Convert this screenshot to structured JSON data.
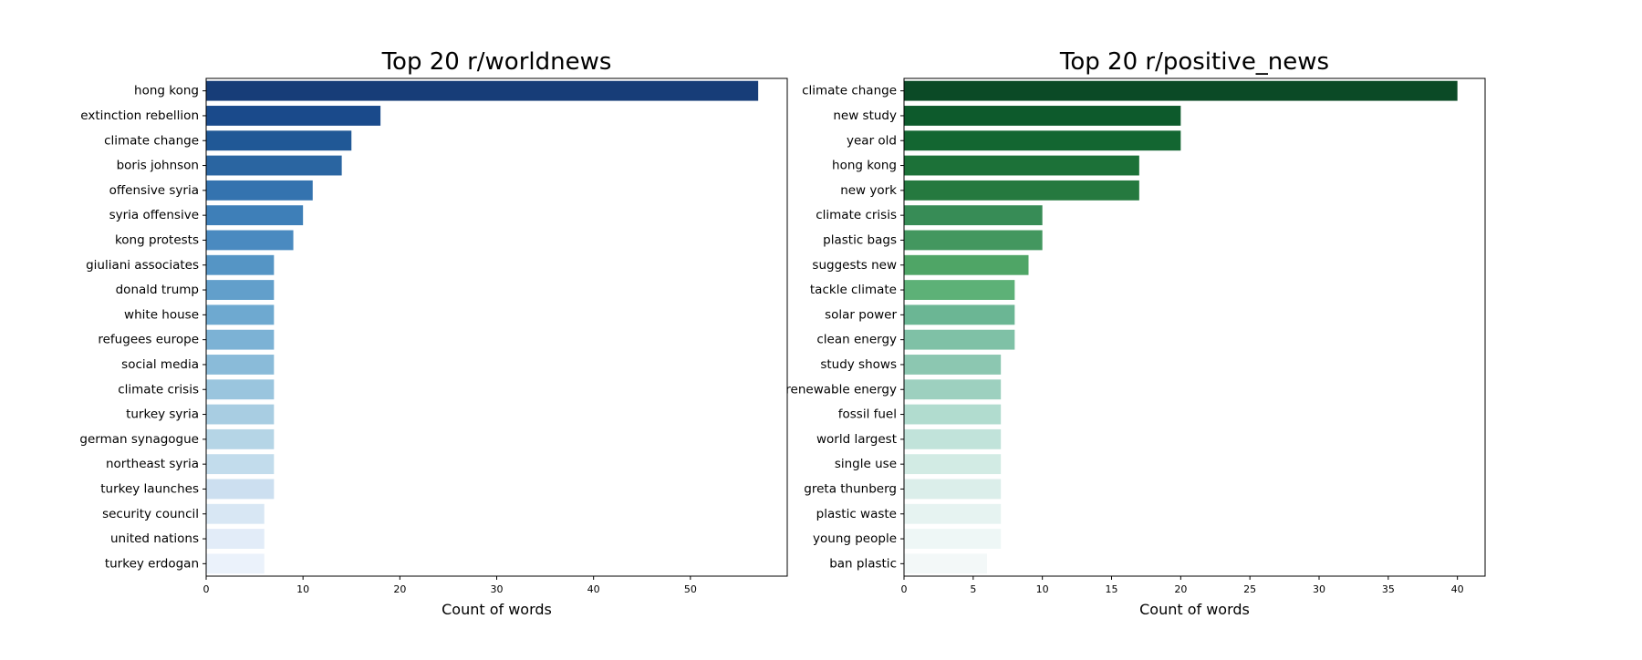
{
  "chart_data": [
    {
      "type": "bar",
      "orientation": "horizontal",
      "title": "Top 20 r/worldnews",
      "xlabel": "Count of words",
      "ylabel": "",
      "xlim": [
        0,
        60
      ],
      "xticks": [
        0,
        10,
        20,
        30,
        40,
        50
      ],
      "grid": false,
      "colormap": "Blues",
      "colors": [
        "#173d78",
        "#1a4a8b",
        "#205896",
        "#2a65a1",
        "#3473af",
        "#3e7fb8",
        "#4a8ac0",
        "#5595c5",
        "#629fcb",
        "#6ea9d0",
        "#7cb2d5",
        "#8abbd9",
        "#9ac5de",
        "#a8cde2",
        "#b5d5e6",
        "#c2dcec",
        "#ccdff0",
        "#d8e7f4",
        "#e2ecf8",
        "#ebf2fb"
      ],
      "categories": [
        "hong kong",
        "extinction rebellion",
        "climate change",
        "boris johnson",
        "offensive syria",
        "syria offensive",
        "kong protests",
        "giuliani associates",
        "donald trump",
        "white house",
        "refugees europe",
        "social media",
        "climate crisis",
        "turkey syria",
        "german synagogue",
        "northeast syria",
        "turkey launches",
        "security council",
        "united nations",
        "turkey erdogan"
      ],
      "values": [
        57,
        18,
        15,
        14,
        11,
        10,
        9,
        7,
        7,
        7,
        7,
        7,
        7,
        7,
        7,
        7,
        7,
        6,
        6,
        6
      ]
    },
    {
      "type": "bar",
      "orientation": "horizontal",
      "title": "Top 20 r/positive_news",
      "xlabel": "Count of words",
      "ylabel": "",
      "xlim": [
        0,
        42
      ],
      "xticks": [
        0,
        5,
        10,
        15,
        20,
        25,
        30,
        35,
        40
      ],
      "grid": false,
      "colormap": "BuGn",
      "colors": [
        "#0b4a26",
        "#0d5a2c",
        "#136631",
        "#1c7138",
        "#25793f",
        "#378c56",
        "#43975f",
        "#4fa566",
        "#5db177",
        "#6bb694",
        "#7fc1a6",
        "#8cc7b1",
        "#9dd0bf",
        "#b1dccf",
        "#c1e3da",
        "#d2ebe4",
        "#dbeeea",
        "#e6f3f1",
        "#eef7f6",
        "#f3f8f8"
      ],
      "categories": [
        "climate change",
        "new study",
        "year old",
        "hong kong",
        "new york",
        "climate crisis",
        "plastic bags",
        "suggests new",
        "tackle climate",
        "solar power",
        "clean energy",
        "study shows",
        "renewable energy",
        "fossil fuel",
        "world largest",
        "single use",
        "greta thunberg",
        "plastic waste",
        "young people",
        "ban plastic"
      ],
      "values": [
        40,
        20,
        20,
        17,
        17,
        10,
        10,
        9,
        8,
        8,
        8,
        7,
        7,
        7,
        7,
        7,
        7,
        7,
        7,
        6
      ]
    }
  ]
}
